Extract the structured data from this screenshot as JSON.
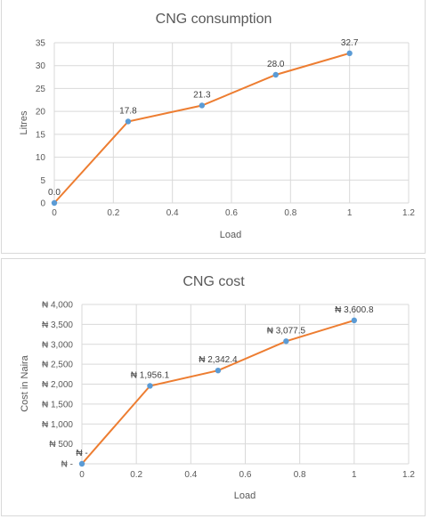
{
  "chart_data": [
    {
      "type": "scatter",
      "title": "CNG consumption",
      "xlabel": "Load",
      "ylabel": "Litres",
      "xlim": [
        0,
        1.2
      ],
      "ylim": [
        0,
        35
      ],
      "x_ticks": [
        0,
        0.2,
        0.4,
        0.6,
        0.8,
        1,
        1.2
      ],
      "x_tick_labels": [
        "0",
        "0.2",
        "0.4",
        "0.6",
        "0.8",
        "1",
        "1.2"
      ],
      "y_ticks": [
        0,
        5,
        10,
        15,
        20,
        25,
        30,
        35
      ],
      "y_tick_labels": [
        "0",
        "5",
        "10",
        "15",
        "20",
        "25",
        "30",
        "35"
      ],
      "grid": true,
      "legend": "none",
      "series": [
        {
          "x": [
            0,
            0.25,
            0.5,
            0.75,
            1
          ],
          "y": [
            0,
            17.8,
            21.3,
            28.0,
            32.7
          ],
          "data_labels": [
            "0.0",
            "17.8",
            "21.3",
            "28.0",
            "32.7"
          ],
          "line_color": "#ED7D31",
          "marker_color": "#5B9BD5"
        }
      ]
    },
    {
      "type": "scatter",
      "title": "CNG cost",
      "xlabel": "Load",
      "ylabel": "Cost in Naira",
      "xlim": [
        0,
        1.2
      ],
      "ylim": [
        0,
        4000
      ],
      "x_ticks": [
        0,
        0.2,
        0.4,
        0.6,
        0.8,
        1,
        1.2
      ],
      "x_tick_labels": [
        "0",
        "0.2",
        "0.4",
        "0.6",
        "0.8",
        "1",
        "1.2"
      ],
      "y_ticks": [
        0,
        500,
        1000,
        1500,
        2000,
        2500,
        3000,
        3500,
        4000
      ],
      "y_tick_labels": [
        "₦ -",
        "₦ 500",
        "₦ 1,000",
        "₦ 1,500",
        "₦ 2,000",
        "₦ 2,500",
        "₦ 3,000",
        "₦ 3,500",
        "₦ 4,000"
      ],
      "grid": true,
      "legend": "none",
      "series": [
        {
          "x": [
            0,
            0.25,
            0.5,
            0.75,
            1
          ],
          "y": [
            0,
            1956.1,
            2342.4,
            3077.5,
            3600.8
          ],
          "data_labels": [
            "₦ -",
            "₦ 1,956.1",
            "₦ 2,342.4",
            "₦ 3,077.5",
            "₦ 3,600.8"
          ],
          "line_color": "#ED7D31",
          "marker_color": "#5B9BD5"
        }
      ]
    }
  ]
}
